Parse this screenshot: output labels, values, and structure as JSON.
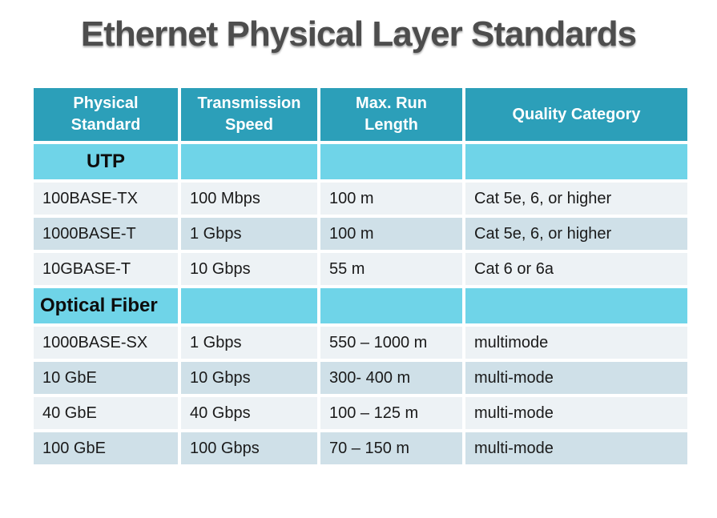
{
  "title": "Ethernet Physical Layer Standards",
  "colors": {
    "header_teal": "#2c9fb9",
    "section_cyan": "#6fd4e8",
    "row_light": "#edf2f5",
    "row_dark": "#cfe0e8",
    "title_gray": "#4d4d4d",
    "header_text": "#ffffff",
    "body_text": "#1a1a1a"
  },
  "table": {
    "columns": [
      "Physical Standard",
      "Transmission Speed",
      "Max. Run Length",
      "Quality Category"
    ],
    "sections": [
      {
        "label": "UTP",
        "rows": [
          [
            "100BASE-TX",
            "100 Mbps",
            "100 m",
            "Cat 5e, 6, or higher"
          ],
          [
            "1000BASE-T",
            "1 Gbps",
            "100 m",
            "Cat 5e, 6, or higher"
          ],
          [
            "10GBASE-T",
            "10 Gbps",
            "55 m",
            "Cat 6 or 6a"
          ]
        ]
      },
      {
        "label": "Optical Fiber",
        "rows": [
          [
            "1000BASE-SX",
            "1 Gbps",
            "550 – 1000 m",
            "multimode"
          ],
          [
            "10 GbE",
            "10 Gbps",
            "300- 400 m",
            "multi-mode"
          ],
          [
            "40 GbE",
            "40 Gbps",
            "100 – 125 m",
            "multi-mode"
          ],
          [
            "100 GbE",
            "100 Gbps",
            "70 – 150 m",
            "multi-mode"
          ]
        ]
      }
    ]
  }
}
